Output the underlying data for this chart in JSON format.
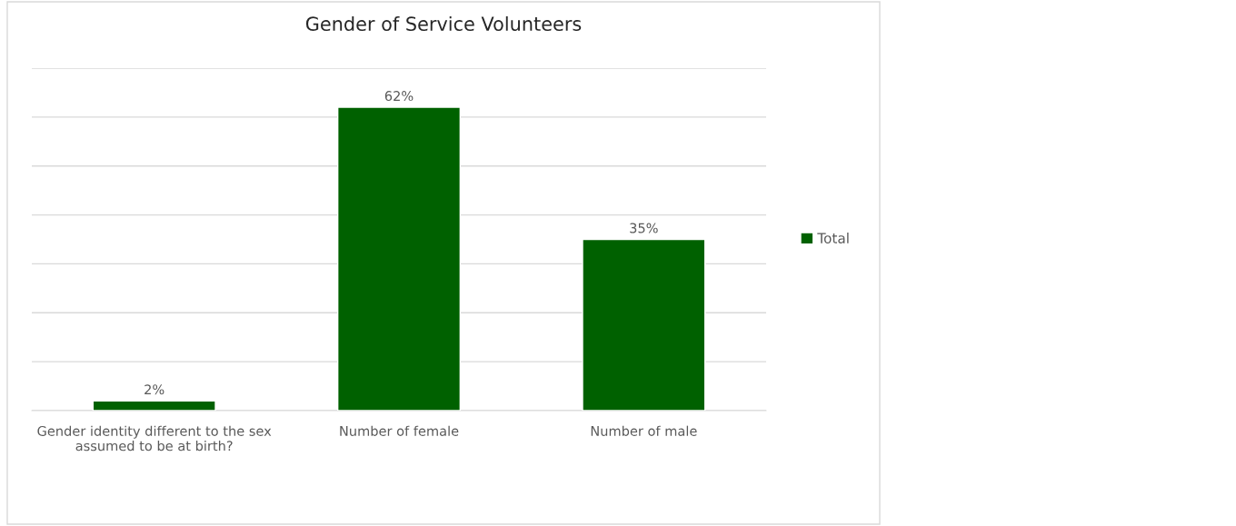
{
  "chart_data": {
    "type": "bar",
    "title": "Gender of Service Volunteers",
    "categories": [
      "Gender identity different to the sex assumed to be at birth?",
      "Number of female",
      "Number of male"
    ],
    "series": [
      {
        "name": "Total",
        "color": "#006100",
        "values": [
          2,
          62,
          35
        ],
        "value_labels": [
          "2%",
          "62%",
          "35%"
        ]
      }
    ],
    "ylim": [
      0,
      70
    ],
    "yticks": [
      {
        "value": 0,
        "label": null
      },
      {
        "value": 10,
        "label": null
      },
      {
        "value": 20,
        "label": null
      },
      {
        "value": 30,
        "label": null
      },
      {
        "value": 40,
        "label": null
      },
      {
        "value": 50,
        "label": null
      },
      {
        "value": 60,
        "label": null
      },
      {
        "value": 70,
        "label": null
      }
    ],
    "tick_labels": "x",
    "grid": "y",
    "legend": "right"
  }
}
